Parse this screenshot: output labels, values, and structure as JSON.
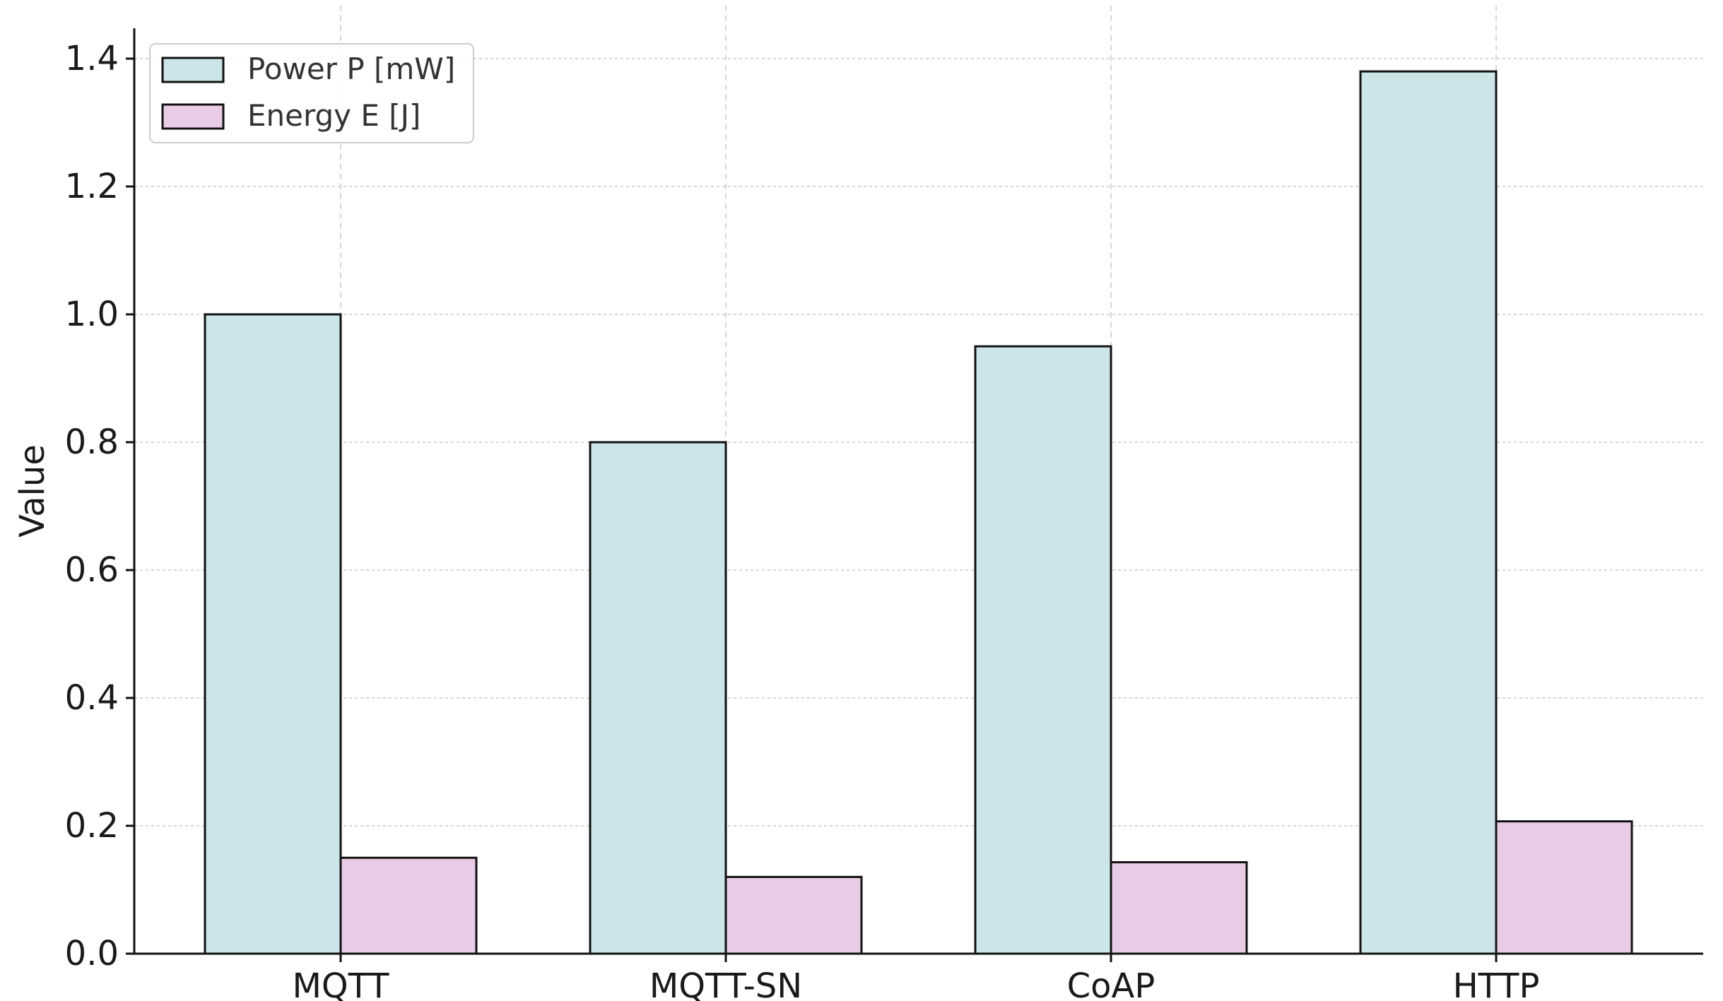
{
  "chart_data": {
    "type": "bar",
    "title": "",
    "xlabel": "",
    "ylabel": "Value",
    "categories": [
      "MQTT",
      "MQTT-SN",
      "CoAP",
      "HTTP"
    ],
    "series": [
      {
        "name": "Power P [mW]",
        "values": [
          1.0,
          0.8,
          0.95,
          1.38
        ],
        "color": "#cce5e8"
      },
      {
        "name": "Energy E [J]",
        "values": [
          0.15,
          0.12,
          0.143,
          0.207
        ],
        "color": "#e8cce5"
      }
    ],
    "ylim": [
      0,
      1.45
    ],
    "yticks": [
      0.0,
      0.2,
      0.4,
      0.6,
      0.8,
      1.0,
      1.2,
      1.4
    ],
    "ytick_labels": [
      "0.0",
      "0.2",
      "0.4",
      "0.6",
      "0.8",
      "1.0",
      "1.2",
      "1.4"
    ],
    "grid": true,
    "legend_position": "top-left",
    "bar_edge_color": "#111111"
  }
}
